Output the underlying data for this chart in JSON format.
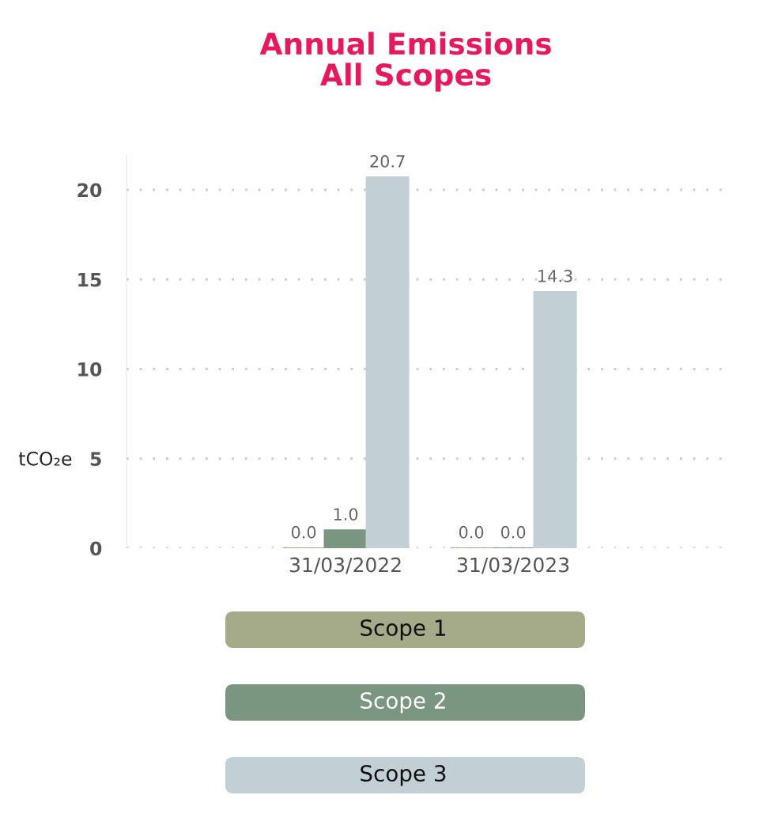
{
  "chart_data": {
    "type": "bar",
    "title": "Annual Emissions\nAll Scopes",
    "ylabel": "tCO₂e",
    "categories": [
      "31/03/2022",
      "31/03/2023"
    ],
    "series": [
      {
        "name": "Scope 1",
        "color": "#a5aa88",
        "values": [
          0.0,
          0.0
        ],
        "value_labels": [
          "0.0",
          "0.0"
        ]
      },
      {
        "name": "Scope 2",
        "color": "#7a9580",
        "values": [
          1.0,
          0.0
        ],
        "value_labels": [
          "1.0",
          "0.0"
        ]
      },
      {
        "name": "Scope 3",
        "color": "#c2cfd5",
        "values": [
          20.7,
          14.3
        ],
        "value_labels": [
          "20.7",
          "14.3"
        ]
      }
    ],
    "ylim": [
      0,
      22
    ],
    "yticks": [
      0,
      5,
      10,
      15,
      20
    ],
    "grid": "y",
    "legend": "bottom"
  }
}
